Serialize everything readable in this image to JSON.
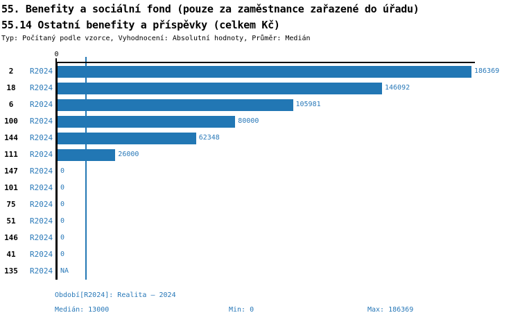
{
  "header": {
    "title1": "55. Benefity a sociální fond (pouze za zaměstnance zařazené do úřadu)",
    "title2": "55.14 Ostatní benefity a příspěvky (celkem Kč)",
    "subtitle": "Typ: Počítaný podle vzorce, Vyhodnocení: Absolutní hodnoty, Průměr: Medián"
  },
  "chart_data": {
    "type": "bar",
    "orientation": "horizontal",
    "title": "55.14 Ostatní benefity a příspěvky (celkem Kč)",
    "categories": [
      "2",
      "18",
      "6",
      "100",
      "144",
      "111",
      "147",
      "101",
      "75",
      "51",
      "146",
      "41",
      "135"
    ],
    "series": [
      {
        "name": "R2024",
        "values": [
          186369,
          146092,
          105981,
          80000,
          62348,
          26000,
          0,
          0,
          0,
          0,
          0,
          0,
          null
        ],
        "value_labels": [
          "186369",
          "146092",
          "105981",
          "80000",
          "62348",
          "26000",
          "0",
          "0",
          "0",
          "0",
          "0",
          "0",
          "NA"
        ]
      }
    ],
    "xlim": [
      0,
      186369
    ],
    "x_ticks": [
      {
        "value": 0,
        "label": "0"
      }
    ],
    "reference_line": {
      "value": 13000,
      "meaning": "Medián"
    },
    "grid": false,
    "legend": "none"
  },
  "colors": {
    "bar": "#2277b4",
    "blue_text": "#2878b8",
    "axis": "#000000",
    "background": "#ffffff"
  },
  "footer": {
    "period": "Období[R2024]: Realita – 2024",
    "median": "Medián: 13000",
    "min": "Min: 0",
    "max": "Max: 186369"
  }
}
